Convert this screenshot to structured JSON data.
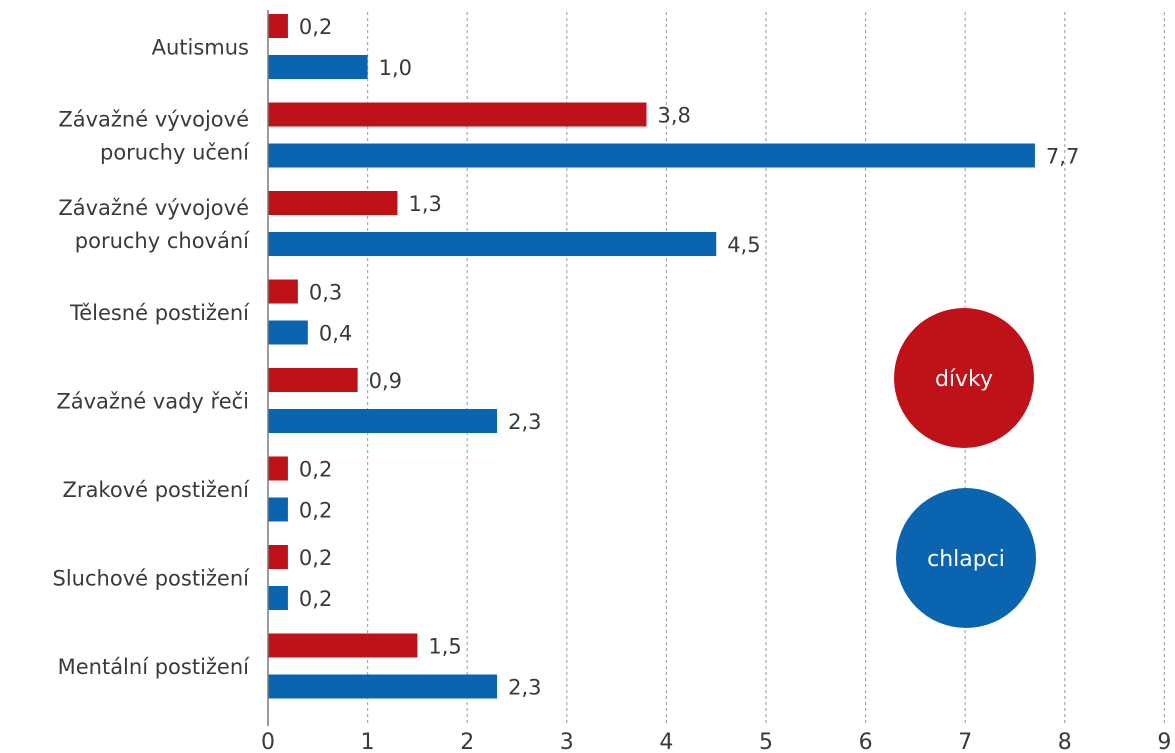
{
  "chart_data": {
    "type": "bar",
    "orientation": "horizontal",
    "categories": [
      [
        "Autismus"
      ],
      [
        "Závažné vývojové",
        "poruchy učení"
      ],
      [
        "Závažné vývojové",
        "poruchy chování"
      ],
      [
        "Tělesné postižení"
      ],
      [
        "Závažné vady řeči"
      ],
      [
        "Zrakové postižení"
      ],
      [
        "Sluchové postižení"
      ],
      [
        "Mentální postižení"
      ]
    ],
    "series": [
      {
        "name": "dívky",
        "color": "#be1218",
        "values": [
          0.2,
          3.8,
          1.3,
          0.3,
          0.9,
          0.2,
          0.2,
          1.5
        ],
        "labels": [
          "0,2",
          "3,8",
          "1,3",
          "0,3",
          "0,9",
          "0,2",
          "0,2",
          "1,5"
        ]
      },
      {
        "name": "chlapci",
        "color": "#0a64b0",
        "values": [
          1.0,
          7.7,
          4.5,
          0.4,
          2.3,
          0.2,
          0.2,
          2.3
        ],
        "labels": [
          "1,0",
          "7,7",
          "4,5",
          "0,4",
          "2,3",
          "0,2",
          "0,2",
          "2,3"
        ]
      }
    ],
    "xlim": [
      0,
      9
    ],
    "xticks": [
      "0",
      "1",
      "2",
      "3",
      "4",
      "5",
      "6",
      "7",
      "8",
      "9"
    ],
    "grid": true,
    "legend_position": "right"
  }
}
